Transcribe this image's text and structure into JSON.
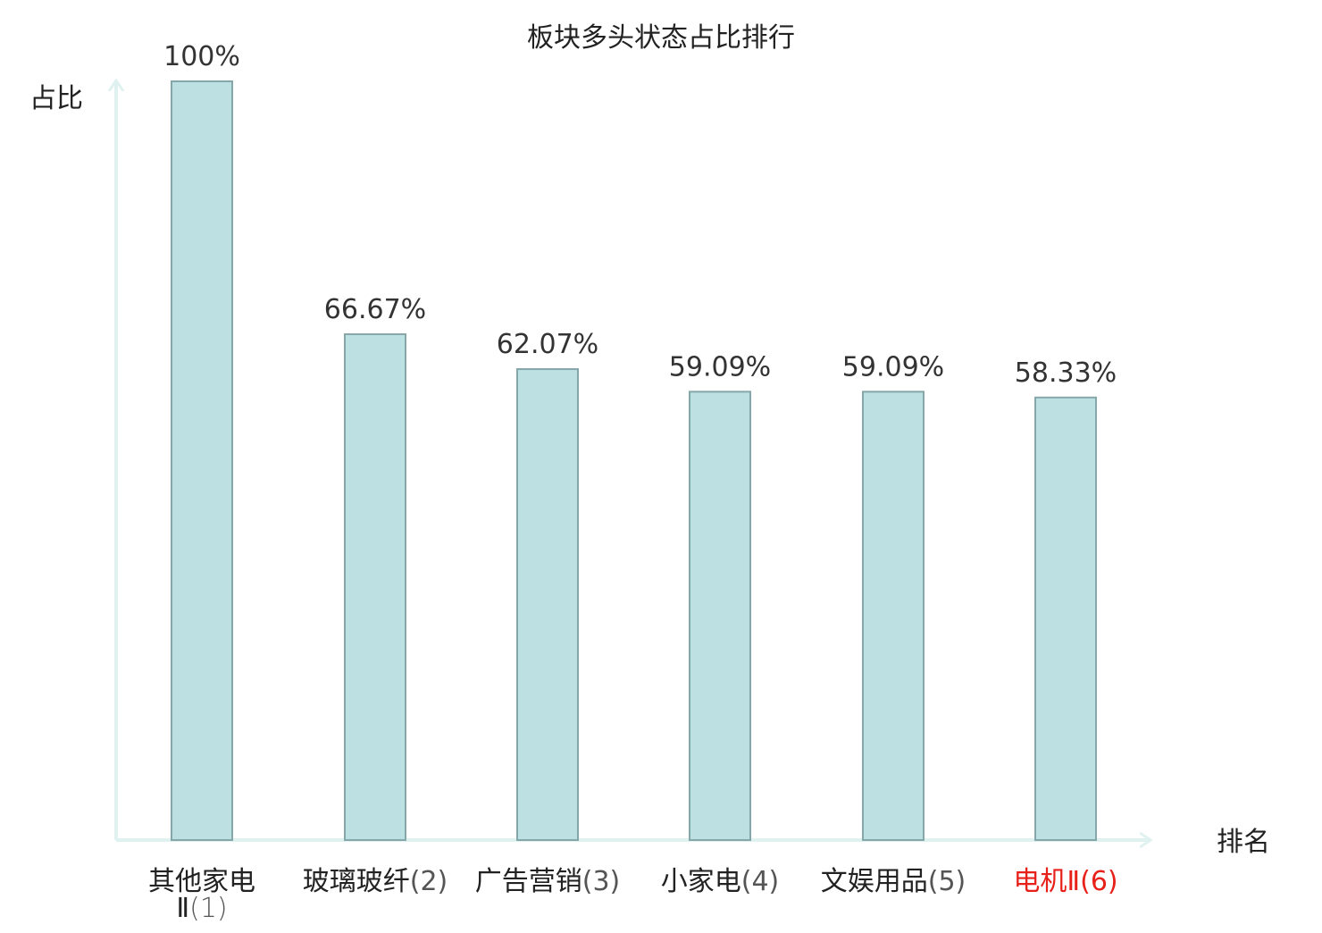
{
  "chart_data": {
    "type": "bar",
    "title": "板块多头状态占比排行",
    "ylabel": "占比",
    "xlabel": "排名",
    "ylim": [
      0,
      100
    ],
    "grid": false,
    "categories": [
      {
        "name": "其他家电Ⅱ",
        "rank": "(1)",
        "highlight": false
      },
      {
        "name": "玻璃玻纤",
        "rank": "(2)",
        "highlight": false
      },
      {
        "name": "广告营销",
        "rank": "(3)",
        "highlight": false
      },
      {
        "name": "小家电",
        "rank": "(4)",
        "highlight": false
      },
      {
        "name": "文娱用品",
        "rank": "(5)",
        "highlight": false
      },
      {
        "name": "电机Ⅱ",
        "rank": "(6)",
        "highlight": true
      }
    ],
    "values": [
      100,
      66.67,
      62.07,
      59.09,
      59.09,
      58.33
    ],
    "value_labels": [
      "100%",
      "66.67%",
      "62.07%",
      "59.09%",
      "59.09%",
      "58.33%"
    ]
  },
  "colors": {
    "bar_fill": "#bde0e2",
    "bar_stroke": "#86a7aa",
    "axis": "#e0f2f0",
    "text": "#222222",
    "label_text": "#333333",
    "rank_text": "#555555",
    "highlight": "#e8201a"
  }
}
